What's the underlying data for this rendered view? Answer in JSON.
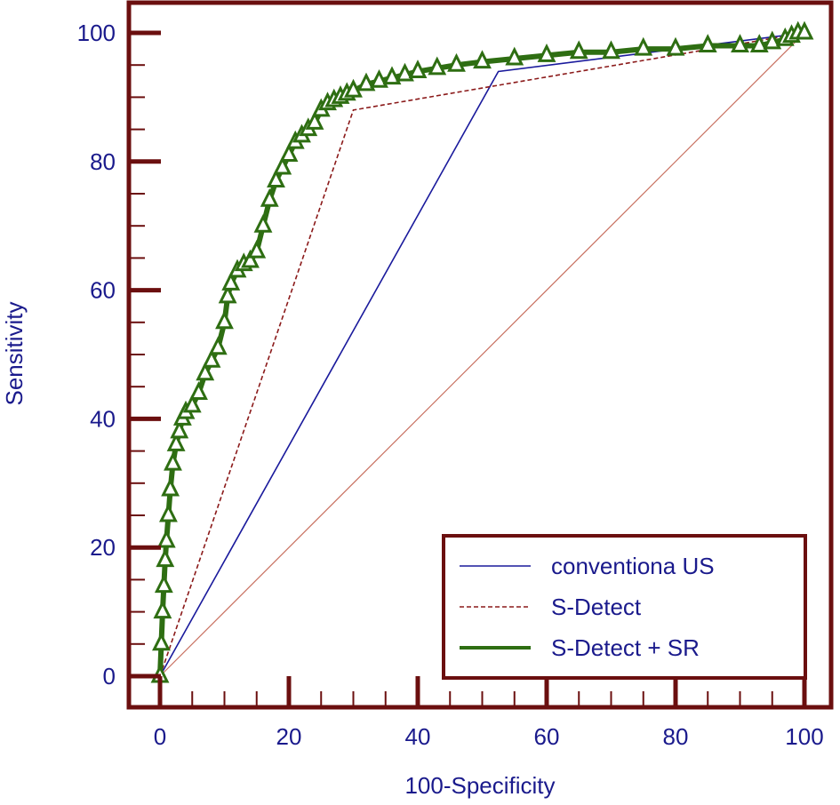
{
  "chart_data": {
    "type": "line",
    "title": "",
    "xlabel": "100-Specificity",
    "ylabel": "Sensitivity",
    "xlim": [
      0,
      100
    ],
    "ylim": [
      0,
      100
    ],
    "x_ticks": [
      0,
      20,
      40,
      60,
      80,
      100
    ],
    "y_ticks": [
      0,
      20,
      40,
      60,
      80,
      100
    ],
    "x_tick_labels": [
      "0",
      "20",
      "40",
      "60",
      "80",
      "100"
    ],
    "y_tick_labels": [
      "0",
      "20",
      "40",
      "60",
      "80",
      "100"
    ],
    "grid": false,
    "legend_position": "bottom-right",
    "colors": {
      "frame": "#6b0f0f",
      "text": "#1a1a8c",
      "reference": "#c87060",
      "marker_fill": "#ffffff",
      "marker_edge": "#2e6e12"
    },
    "series": [
      {
        "name": "conventiona US",
        "color": "#1a1a9c",
        "style": "solid",
        "x": [
          0,
          52.5,
          100
        ],
        "y": [
          0,
          94,
          100
        ]
      },
      {
        "name": "S-Detect",
        "color": "#8b1a1a",
        "style": "dashed",
        "x": [
          0,
          30,
          100
        ],
        "y": [
          0,
          88,
          100
        ]
      },
      {
        "name": "S-Detect + SR",
        "color": "#2e6e12",
        "style": "triangle-markers",
        "x": [
          0,
          0.2,
          0.4,
          0.6,
          0.8,
          1,
          1.3,
          1.6,
          2,
          2.5,
          3,
          3.5,
          4,
          5,
          6,
          7,
          8,
          9,
          10,
          10.5,
          11,
          12,
          13,
          14,
          15,
          16,
          17,
          18,
          19,
          20,
          21,
          22,
          23,
          24,
          25,
          26,
          27,
          28,
          29,
          30,
          32,
          34,
          36,
          38,
          40,
          43,
          46,
          50,
          55,
          60,
          65,
          70,
          75,
          80,
          85,
          90,
          93,
          95,
          97,
          98,
          99,
          100
        ],
        "y": [
          0,
          5,
          10,
          14,
          18,
          21,
          25,
          29,
          33,
          36,
          38,
          40,
          41,
          42,
          44,
          47,
          49,
          51,
          55,
          59,
          61,
          63,
          64,
          64.5,
          66,
          70,
          74,
          77,
          79,
          81,
          83,
          84,
          85,
          86,
          88,
          89,
          89.5,
          90,
          90.5,
          91,
          92,
          92.5,
          93,
          93.5,
          94,
          94.5,
          95,
          95.5,
          96,
          96.5,
          97,
          97,
          97.5,
          97.5,
          98,
          98,
          98,
          98.5,
          99,
          99.5,
          100,
          100
        ]
      }
    ]
  }
}
